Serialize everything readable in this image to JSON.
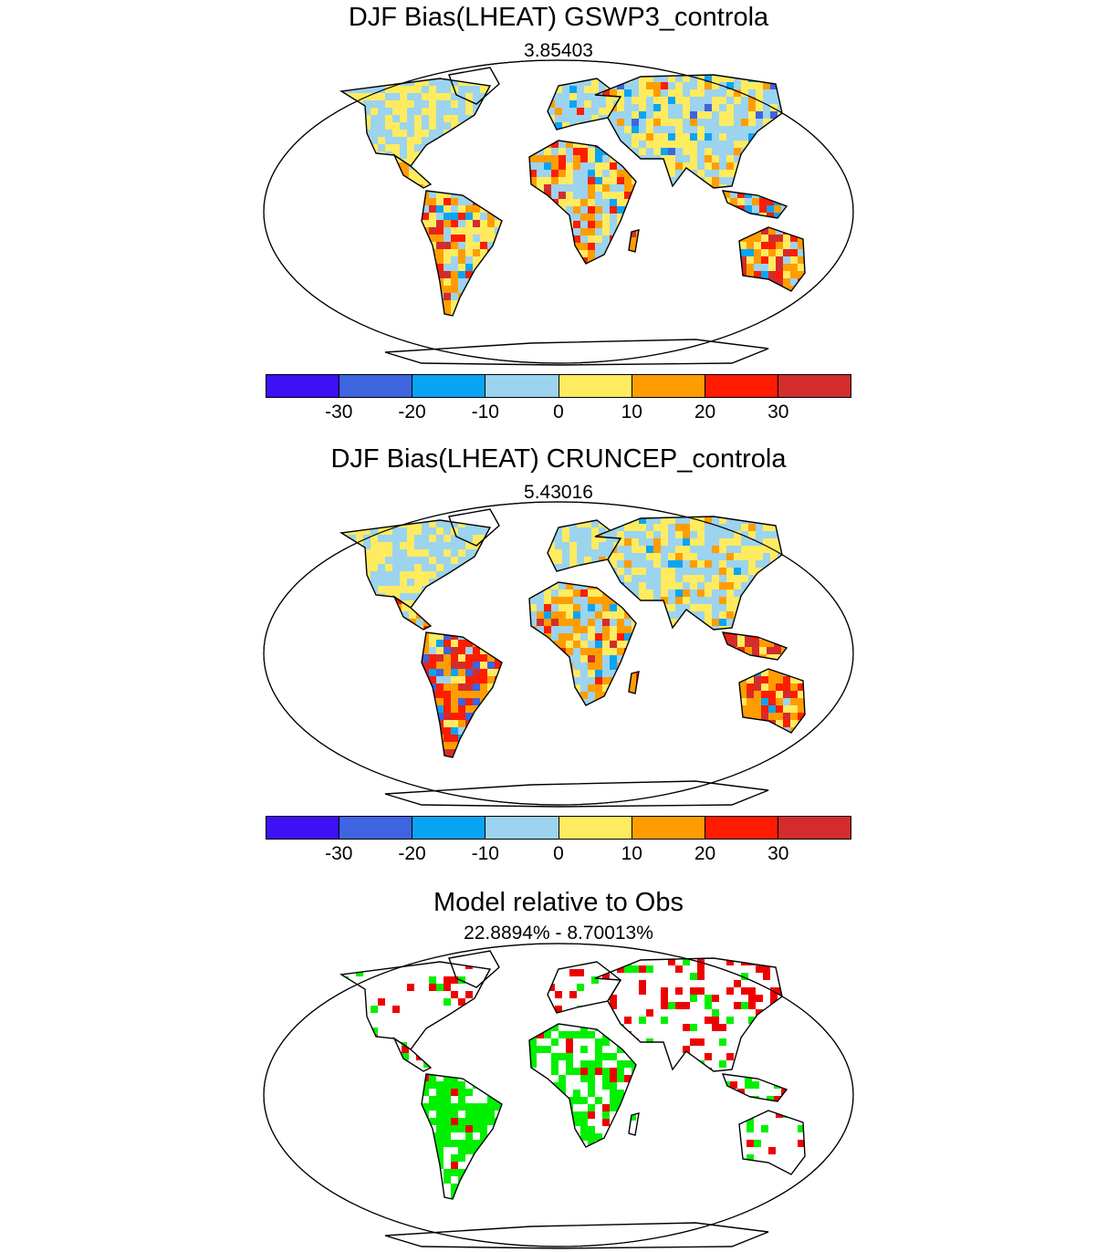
{
  "panels": [
    {
      "title": "DJF Bias(LHEAT) GSWP3_controla",
      "subtitle": "3.85403"
    },
    {
      "title": "DJF Bias(LHEAT) CRUNCEP_controla",
      "subtitle": "5.43016"
    },
    {
      "title": "Model relative to Obs",
      "subtitle": "22.8894% - 8.70013%"
    }
  ],
  "colorbar": {
    "colors": [
      "#3d10f5",
      "#3e64e0",
      "#0aa4f5",
      "#9cd3ee",
      "#ffeb60",
      "#ff9d00",
      "#ff1c00",
      "#d42c2c"
    ],
    "tick_labels": [
      "-30",
      "-20",
      "-10",
      "0",
      "10",
      "20",
      "30"
    ]
  },
  "relative_colors": {
    "better": "#00f000",
    "worse": "#ee0000"
  }
}
